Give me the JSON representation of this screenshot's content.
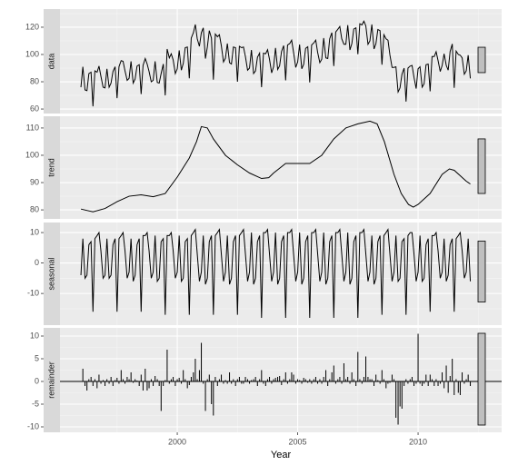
{
  "chart_data": {
    "type": "stl",
    "xlabel": "Year",
    "xlim": [
      1995.13,
      2013.47
    ],
    "xticks": [
      2000,
      2005,
      2010
    ],
    "x_minor_ticks": [
      1997.5,
      2002.5,
      2007.5,
      2012.5
    ],
    "grid": true,
    "x": [
      1996,
      1996.08,
      1996.17,
      1996.25,
      1996.33,
      1996.42,
      1996.5,
      1996.58,
      1996.67,
      1996.75,
      1996.83,
      1996.92,
      1997,
      1997.08,
      1997.17,
      1997.25,
      1997.33,
      1997.42,
      1997.5,
      1997.58,
      1997.67,
      1997.75,
      1997.83,
      1997.92,
      1998,
      1998.08,
      1998.17,
      1998.25,
      1998.33,
      1998.42,
      1998.5,
      1998.58,
      1998.67,
      1998.75,
      1998.83,
      1998.92,
      1999,
      1999.08,
      1999.17,
      1999.25,
      1999.33,
      1999.42,
      1999.5,
      1999.58,
      1999.67,
      1999.75,
      1999.83,
      1999.92,
      2000,
      2000.08,
      2000.17,
      2000.25,
      2000.33,
      2000.42,
      2000.5,
      2000.58,
      2000.67,
      2000.75,
      2000.83,
      2000.92,
      2001,
      2001.08,
      2001.17,
      2001.25,
      2001.33,
      2001.42,
      2001.5,
      2001.58,
      2001.67,
      2001.75,
      2001.83,
      2001.92,
      2002,
      2002.08,
      2002.17,
      2002.25,
      2002.33,
      2002.42,
      2002.5,
      2002.58,
      2002.67,
      2002.75,
      2002.83,
      2002.92,
      2003,
      2003.08,
      2003.17,
      2003.25,
      2003.33,
      2003.42,
      2003.5,
      2003.58,
      2003.67,
      2003.75,
      2003.83,
      2003.92,
      2004,
      2004.08,
      2004.17,
      2004.25,
      2004.33,
      2004.42,
      2004.5,
      2004.58,
      2004.67,
      2004.75,
      2004.83,
      2004.92,
      2005,
      2005.08,
      2005.17,
      2005.25,
      2005.33,
      2005.42,
      2005.5,
      2005.58,
      2005.67,
      2005.75,
      2005.83,
      2005.92,
      2006,
      2006.08,
      2006.17,
      2006.25,
      2006.33,
      2006.42,
      2006.5,
      2006.58,
      2006.67,
      2006.75,
      2006.83,
      2006.92,
      2007,
      2007.08,
      2007.17,
      2007.25,
      2007.33,
      2007.42,
      2007.5,
      2007.58,
      2007.67,
      2007.75,
      2007.83,
      2007.92,
      2008,
      2008.08,
      2008.17,
      2008.25,
      2008.33,
      2008.42,
      2008.5,
      2008.58,
      2008.67,
      2008.75,
      2008.83,
      2008.92,
      2009,
      2009.08,
      2009.17,
      2009.25,
      2009.33,
      2009.42,
      2009.5,
      2009.58,
      2009.67,
      2009.75,
      2009.83,
      2009.92,
      2010,
      2010.08,
      2010.17,
      2010.25,
      2010.33,
      2010.42,
      2010.5,
      2010.58,
      2010.67,
      2010.75,
      2010.83,
      2010.92,
      2011,
      2011.08,
      2011.17,
      2011.25,
      2011.33,
      2011.42,
      2011.5,
      2011.58,
      2011.67,
      2011.75,
      2011.83,
      2011.92,
      2012,
      2012.08,
      2012.17
    ],
    "panels": [
      {
        "name": "data",
        "type": "line",
        "color": "#000000",
        "ylim": [
          56.7,
          133.3
        ],
        "yticks": [
          60,
          80,
          100,
          120
        ],
        "y_minor_ticks": [
          70,
          90,
          110,
          130
        ],
        "range_bar": [
          86.7,
          105.3
        ],
        "values": [
          76,
          91,
          74,
          73.5,
          86,
          87,
          62,
          88,
          87,
          91.5,
          84,
          76,
          75.5,
          89.5,
          76,
          79,
          87.5,
          91,
          68,
          91,
          95.5,
          95,
          88,
          81,
          82.5,
          95,
          79,
          82,
          91.5,
          92.5,
          71,
          92,
          97,
          93,
          87.5,
          80,
          81,
          95,
          79.5,
          79,
          86,
          93,
          70,
          104,
          97.5,
          100.5,
          96,
          86,
          89.5,
          103,
          88.5,
          93.5,
          105,
          105.5,
          82.5,
          112,
          116,
          122,
          111.5,
          106,
          116,
          119.5,
          97,
          105.5,
          117.5,
          112,
          81.5,
          115,
          113,
          114.5,
          106.5,
          94.5,
          97.3,
          108,
          94,
          93,
          105.5,
          105,
          80,
          106,
          105,
          105.5,
          98.5,
          88.5,
          90,
          103.3,
          86,
          88,
          98,
          101,
          76,
          101,
          100.5,
          103.5,
          96.5,
          86.5,
          91,
          104.8,
          89,
          91.7,
          102.2,
          106.5,
          81,
          107,
          108,
          110.5,
          101.5,
          90.5,
          94.5,
          107.3,
          89.5,
          92.8,
          104.5,
          105.7,
          79.5,
          107,
          108.5,
          110.5,
          101.5,
          94,
          96.5,
          112,
          97.5,
          97,
          111.5,
          116,
          91.5,
          116.5,
          118.5,
          120.5,
          111.5,
          107.5,
          107.5,
          121.5,
          103.3,
          108,
          118.7,
          119.5,
          100.2,
          122.5,
          121.7,
          124.4,
          121,
          107.5,
          110,
          122,
          104,
          108,
          118.3,
          117.5,
          92.5,
          114.5,
          111.5,
          110.5,
          99.7,
          90.5,
          90.5,
          91,
          72.5,
          75.5,
          85.5,
          90,
          65.5,
          90,
          91.5,
          92,
          83.2,
          75,
          89.5,
          91,
          76,
          78.5,
          92.5,
          93,
          73,
          98.5,
          98.5,
          102,
          95.5,
          87.5,
          92,
          100.5,
          92,
          88.5,
          102.2,
          107.7,
          75.5,
          102.5,
          100,
          99.5,
          97.5,
          85.5,
          88,
          99.5,
          82.5
        ]
      },
      {
        "name": "trend",
        "type": "line",
        "color": "#000000",
        "ylim": [
          76.7,
          114.3
        ],
        "yticks": [
          80,
          90,
          100,
          110
        ],
        "y_minor_ticks": [
          85,
          95,
          105
        ],
        "range_bar": [
          86,
          106
        ],
        "x": [
          1996,
          1996.5,
          1997,
          1997.5,
          1998,
          1998.5,
          1999,
          1999.5,
          2000,
          2000.5,
          2000.8,
          2001,
          2001.25,
          2001.5,
          2002,
          2002.5,
          2003,
          2003.5,
          2003.8,
          2004,
          2004.5,
          2005,
          2005.5,
          2006,
          2006.5,
          2007,
          2007.5,
          2008,
          2008.3,
          2008.6,
          2009,
          2009.3,
          2009.6,
          2009.8,
          2010,
          2010.5,
          2011,
          2011.3,
          2011.5,
          2012,
          2012.17
        ],
        "values": [
          80.3,
          79.3,
          80.5,
          83,
          85,
          85.5,
          84.8,
          86,
          92,
          99,
          105,
          110.5,
          110,
          106,
          100,
          96.5,
          93.5,
          91.5,
          91.8,
          93.5,
          97,
          97,
          97,
          100,
          106,
          110,
          111.5,
          112.5,
          111.5,
          105,
          93,
          86,
          82,
          81,
          82,
          86,
          93,
          95,
          94.5,
          90.5,
          89.5
        ]
      },
      {
        "name": "seasonal",
        "type": "line",
        "color": "#000000",
        "ylim": [
          -20.4,
          13.3
        ],
        "yticks": [
          -10,
          0,
          10
        ],
        "y_minor_ticks": [
          -15,
          -5,
          5
        ],
        "range_bar": [
          -12.8,
          7.2
        ],
        "values": [
          -4,
          8,
          -5,
          -4,
          6,
          7,
          -16,
          8,
          9,
          10,
          4,
          -5,
          -4,
          8,
          -5,
          -4,
          6,
          8,
          -16,
          8,
          9,
          10,
          4,
          -5,
          -3,
          8,
          -6,
          -4,
          6,
          8,
          -16,
          9,
          9,
          10,
          4,
          -5,
          -3,
          9,
          -6,
          -5,
          7,
          8,
          -17,
          9,
          9,
          10,
          4,
          -5,
          -3,
          9,
          -6,
          -5,
          7,
          8,
          -17,
          9,
          10,
          11,
          3,
          -6,
          -3,
          9,
          -7,
          -5,
          7,
          9,
          -17,
          9,
          10,
          11,
          3,
          -6,
          -3,
          9,
          -7,
          -5,
          7,
          9,
          -17,
          9,
          10,
          11,
          3,
          -6,
          -3,
          10,
          -7,
          -5,
          7,
          9,
          -18,
          10,
          10,
          11,
          3,
          -6,
          -3,
          10,
          -7,
          -5,
          7,
          9,
          -18,
          10,
          10,
          11,
          3,
          -6,
          -3,
          10,
          -7,
          -5,
          7,
          9,
          -18,
          10,
          10,
          11,
          3,
          -6,
          -3,
          10,
          -7,
          -5,
          7,
          9,
          -18,
          10,
          10,
          11,
          3,
          -6,
          -3,
          10,
          -7,
          -5,
          7,
          9,
          -18,
          10,
          10,
          11,
          3,
          -6,
          -3,
          9,
          -7,
          -5,
          7,
          9,
          -17,
          9,
          10,
          11,
          3,
          -6,
          -3,
          9,
          -6,
          -5,
          7,
          8,
          -17,
          9,
          10,
          10,
          3,
          -6,
          -3,
          9,
          -6,
          -5,
          6,
          8,
          -16,
          9,
          9,
          10,
          4,
          -5,
          -3,
          8,
          -6,
          -4,
          6,
          8,
          -16,
          8,
          9,
          10,
          4,
          -5,
          -3,
          8,
          -6
        ]
      },
      {
        "name": "remainder",
        "type": "bar",
        "color": "#000000",
        "ylim": [
          -11.2,
          11.8
        ],
        "yticks": [
          -10,
          -5,
          0,
          5,
          10
        ],
        "y_minor_ticks": [
          -7.5,
          -2.5,
          2.5,
          7.5
        ],
        "range_bar": [
          -9.6,
          10.6
        ],
        "values": [
          0,
          2.8,
          -1,
          -2,
          0.5,
          1,
          -1,
          0.5,
          -1.5,
          1.5,
          -0.5,
          0.3,
          -1,
          0.5,
          -0.5,
          1,
          -1,
          0.3,
          0.8,
          -0.5,
          2.5,
          0.5,
          -0.5,
          1,
          0.5,
          2,
          -0.3,
          0.5,
          0.2,
          -1,
          1.5,
          -2,
          2.8,
          -2,
          -1.5,
          0.5,
          -1,
          1.2,
          0.5,
          -1,
          -6.5,
          -1,
          0.3,
          7,
          -0.5,
          0.5,
          1,
          -1,
          0.5,
          0.8,
          -0.5,
          2.5,
          0.5,
          -1.5,
          -0.8,
          1,
          2,
          5,
          0.5,
          2.5,
          8.5,
          -0.5,
          -6.5,
          0.5,
          1.5,
          -5,
          -7.5,
          1,
          -1,
          0.5,
          1.5,
          -0.5,
          0.3,
          -0.5,
          2,
          -0.5,
          0.5,
          -1,
          0.5,
          1,
          -0.5,
          -0.5,
          1,
          0.5,
          -0.5,
          0.3,
          0.5,
          1,
          -1,
          0.5,
          2.5,
          -0.5,
          -1,
          0.5,
          1,
          -0.5,
          0.5,
          0.8,
          1,
          1.2,
          -0.8,
          0.5,
          2,
          -0.5,
          0.5,
          2,
          1.5,
          -0.5,
          0.5,
          0.3,
          -0.5,
          0.8,
          0.5,
          -0.3,
          0.5,
          -0.5,
          0.5,
          1,
          -0.5,
          0.5,
          -0.5,
          1,
          2.5,
          -1,
          0.5,
          2,
          3.5,
          -0.5,
          0.5,
          1,
          -0.5,
          4,
          0.5,
          1,
          -0.5,
          2,
          0.5,
          -1,
          6.5,
          0.5,
          -0.5,
          1,
          5.5,
          1,
          0.5,
          0.5,
          -1,
          1.5,
          0.3,
          -0.5,
          2.5,
          0.5,
          -1.5,
          -0.5,
          -0.3,
          1.5,
          0.5,
          -8,
          -9.5,
          -5.5,
          -6,
          -1,
          0.5,
          -0.5,
          0.5,
          1,
          -1,
          -0.5,
          10.5,
          -0.5,
          -1,
          -0.5,
          1.5,
          -1,
          1.5,
          0.5,
          -1,
          0.5,
          -1,
          -0.5,
          2,
          -1.5,
          3.5,
          -2.5,
          1.2,
          5,
          -3,
          0.5,
          -2.5,
          -3,
          2,
          -0.5,
          0.5,
          1.5,
          -1
        ]
      }
    ]
  }
}
